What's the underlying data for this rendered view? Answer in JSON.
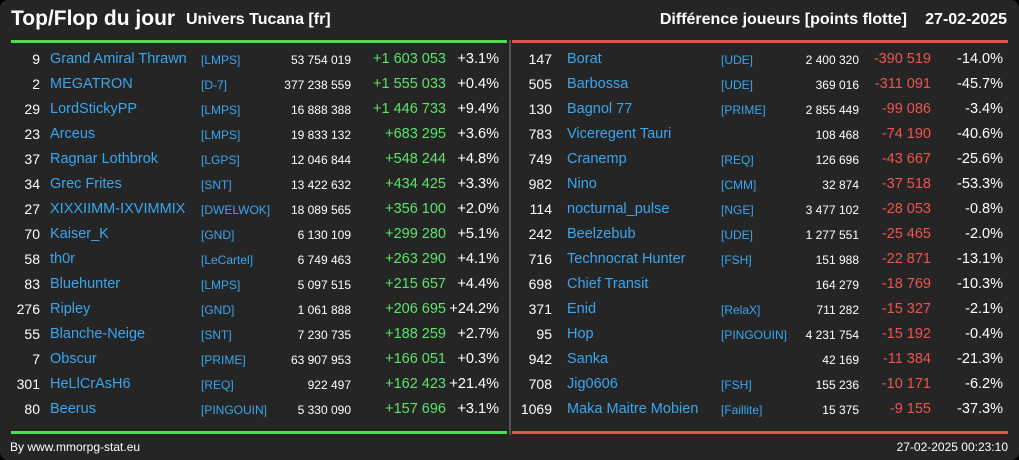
{
  "header": {
    "title": "Top/Flop du jour",
    "universe": "Univers Tucana [fr]",
    "metric": "Différence joueurs [points flotte]",
    "date": "27-02-2025"
  },
  "top": [
    {
      "rank": "9",
      "name": "Grand Amiral Thrawn",
      "ally": "[LMPS]",
      "points": "53 754 019",
      "delta": "+1 603 053",
      "pct": "+3.1%"
    },
    {
      "rank": "2",
      "name": "MEGATRON",
      "ally": "[D-7]",
      "points": "377 238 559",
      "delta": "+1 555 033",
      "pct": "+0.4%"
    },
    {
      "rank": "29",
      "name": "LordStickyPP",
      "ally": "[LMPS]",
      "points": "16 888 388",
      "delta": "+1 446 733",
      "pct": "+9.4%"
    },
    {
      "rank": "23",
      "name": "Arceus",
      "ally": "[LMPS]",
      "points": "19 833 132",
      "delta": "+683 295",
      "pct": "+3.6%"
    },
    {
      "rank": "37",
      "name": "Ragnar Lothbrok",
      "ally": "[LGPS]",
      "points": "12 046 844",
      "delta": "+548 244",
      "pct": "+4.8%"
    },
    {
      "rank": "34",
      "name": "Grec Frites",
      "ally": "[SNT]",
      "points": "13 422 632",
      "delta": "+434 425",
      "pct": "+3.3%"
    },
    {
      "rank": "27",
      "name": "XIXXIIMM-IXVIMMIX",
      "ally": "[DWELWOK]",
      "points": "18 089 565",
      "delta": "+356 100",
      "pct": "+2.0%"
    },
    {
      "rank": "70",
      "name": "Kaiser_K",
      "ally": "[GND]",
      "points": "6 130 109",
      "delta": "+299 280",
      "pct": "+5.1%"
    },
    {
      "rank": "58",
      "name": "th0r",
      "ally": "[LeCartel]",
      "points": "6 749 463",
      "delta": "+263 290",
      "pct": "+4.1%"
    },
    {
      "rank": "83",
      "name": "Bluehunter",
      "ally": "[LMPS]",
      "points": "5 097 515",
      "delta": "+215 657",
      "pct": "+4.4%"
    },
    {
      "rank": "276",
      "name": "Ripley",
      "ally": "[GND]",
      "points": "1 061 888",
      "delta": "+206 695",
      "pct": "+24.2%"
    },
    {
      "rank": "55",
      "name": "Blanche-Neige",
      "ally": "[SNT]",
      "points": "7 230 735",
      "delta": "+188 259",
      "pct": "+2.7%"
    },
    {
      "rank": "7",
      "name": "Obscur",
      "ally": "[PRIME]",
      "points": "63 907 953",
      "delta": "+166 051",
      "pct": "+0.3%"
    },
    {
      "rank": "301",
      "name": "HeLlCrAsH6",
      "ally": "[REQ]",
      "points": "922 497",
      "delta": "+162 423",
      "pct": "+21.4%"
    },
    {
      "rank": "80",
      "name": "Beerus",
      "ally": "[PINGOUIN]",
      "points": "5 330 090",
      "delta": "+157 696",
      "pct": "+3.1%"
    }
  ],
  "flop": [
    {
      "rank": "147",
      "name": "Borat",
      "ally": "[UDE]",
      "points": "2 400 320",
      "delta": "-390 519",
      "pct": "-14.0%"
    },
    {
      "rank": "505",
      "name": "Barbossa",
      "ally": "[UDE]",
      "points": "369 016",
      "delta": "-311 091",
      "pct": "-45.7%"
    },
    {
      "rank": "130",
      "name": "Bagnol 77",
      "ally": "[PRIME]",
      "points": "2 855 449",
      "delta": "-99 086",
      "pct": "-3.4%"
    },
    {
      "rank": "783",
      "name": "Viceregent Tauri",
      "ally": "",
      "points": "108 468",
      "delta": "-74 190",
      "pct": "-40.6%"
    },
    {
      "rank": "749",
      "name": "Cranemp",
      "ally": "[REQ]",
      "points": "126 696",
      "delta": "-43 667",
      "pct": "-25.6%"
    },
    {
      "rank": "982",
      "name": "Nino",
      "ally": "[CMM]",
      "points": "32 874",
      "delta": "-37 518",
      "pct": "-53.3%"
    },
    {
      "rank": "114",
      "name": "nocturnal_pulse",
      "ally": "[NGE]",
      "points": "3 477 102",
      "delta": "-28 053",
      "pct": "-0.8%"
    },
    {
      "rank": "242",
      "name": "Beelzebub",
      "ally": "[UDE]",
      "points": "1 277 551",
      "delta": "-25 465",
      "pct": "-2.0%"
    },
    {
      "rank": "716",
      "name": "Technocrat Hunter",
      "ally": "[FSH]",
      "points": "151 988",
      "delta": "-22 871",
      "pct": "-13.1%"
    },
    {
      "rank": "698",
      "name": "Chief Transit",
      "ally": "",
      "points": "164 279",
      "delta": "-18 769",
      "pct": "-10.3%"
    },
    {
      "rank": "371",
      "name": "Enid",
      "ally": "[RelaX]",
      "points": "711 282",
      "delta": "-15 327",
      "pct": "-2.1%"
    },
    {
      "rank": "95",
      "name": "Hop",
      "ally": "[PINGOUIN]",
      "points": "4 231 754",
      "delta": "-15 192",
      "pct": "-0.4%"
    },
    {
      "rank": "942",
      "name": "Sanka",
      "ally": "",
      "points": "42 169",
      "delta": "-11 384",
      "pct": "-21.3%"
    },
    {
      "rank": "708",
      "name": "Jig0606",
      "ally": "[FSH]",
      "points": "155 236",
      "delta": "-10 171",
      "pct": "-6.2%"
    },
    {
      "rank": "1069",
      "name": "Maka Maitre Mobien",
      "ally": "[Faillite]",
      "points": "15 375",
      "delta": "-9 155",
      "pct": "-37.3%"
    }
  ],
  "footer": {
    "credit": "By www.mmorpg-stat.eu",
    "timestamp": "27-02-2025 00:23:10"
  },
  "colors": {
    "background": "#252525",
    "link": "#3aa6ee",
    "positive": "#5ce36a",
    "negative": "#f0534f",
    "top_line": "#4cdd55",
    "flop_line": "#e4534f"
  }
}
